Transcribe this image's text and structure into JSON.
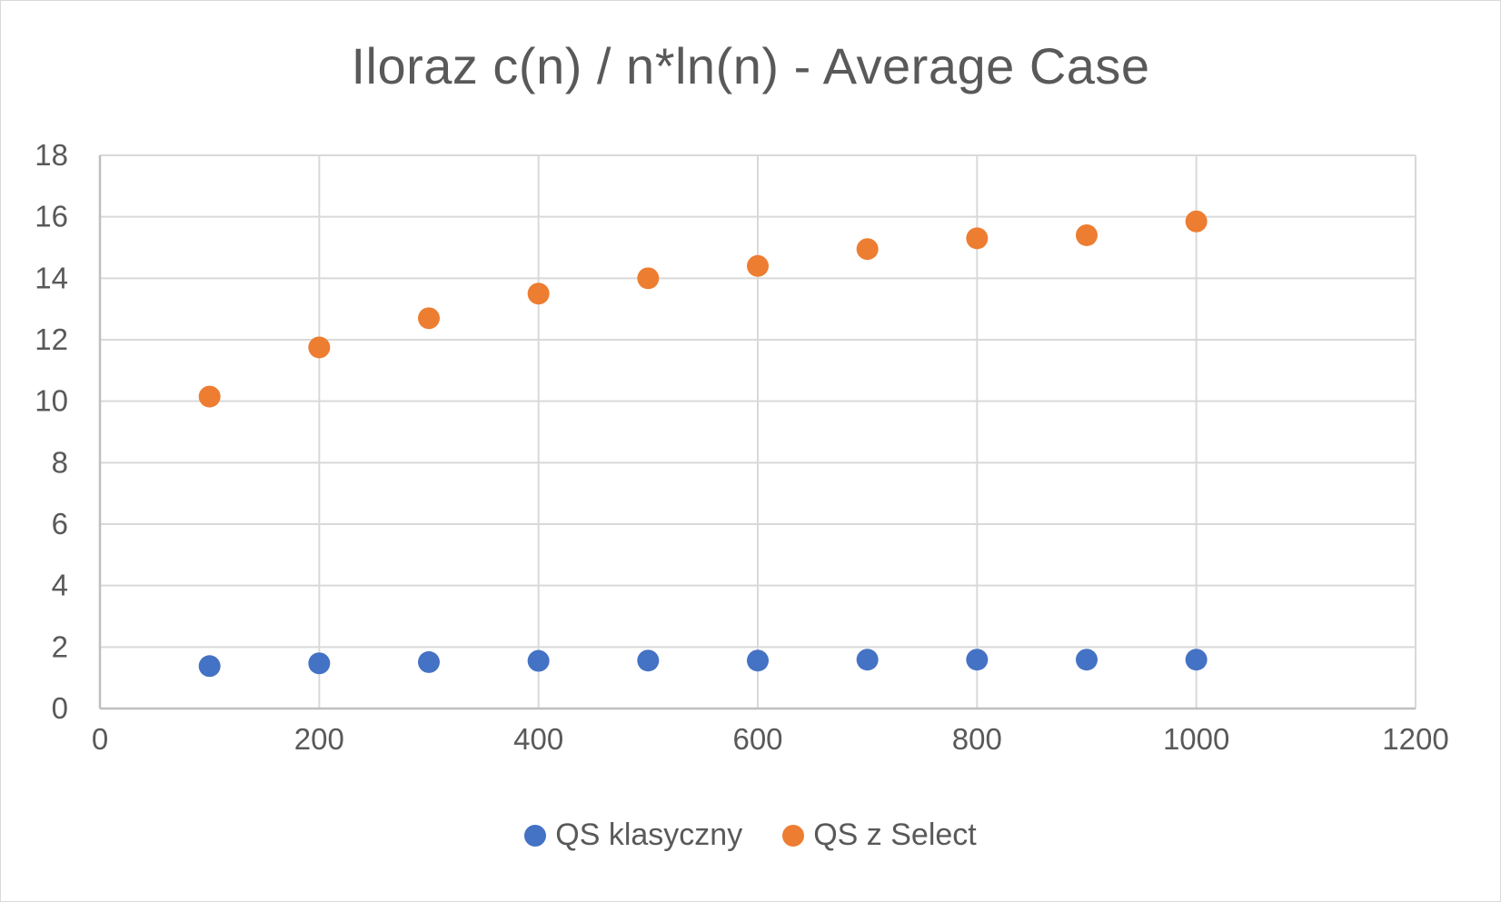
{
  "chart_data": {
    "type": "scatter",
    "title": "Iloraz c(n) / n*ln(n) - Average Case",
    "xlabel": "",
    "ylabel": "",
    "xlim": [
      0,
      1200
    ],
    "ylim": [
      0,
      18
    ],
    "xticks": [
      0,
      200,
      400,
      600,
      800,
      1000,
      1200
    ],
    "yticks": [
      0,
      2,
      4,
      6,
      8,
      10,
      12,
      14,
      16,
      18
    ],
    "grid": true,
    "legend_position": "bottom",
    "series": [
      {
        "name": "QS klasyczny",
        "color": "#4472c4",
        "x": [
          100,
          200,
          300,
          400,
          500,
          600,
          700,
          800,
          900,
          1000
        ],
        "y": [
          1.38,
          1.47,
          1.51,
          1.55,
          1.56,
          1.56,
          1.59,
          1.59,
          1.59,
          1.59
        ]
      },
      {
        "name": "QS z Select",
        "color": "#ed7d31",
        "x": [
          100,
          200,
          300,
          400,
          500,
          600,
          700,
          800,
          900,
          1000
        ],
        "y": [
          10.15,
          11.75,
          12.7,
          13.5,
          14.0,
          14.4,
          14.95,
          15.3,
          15.4,
          15.85
        ]
      }
    ]
  }
}
